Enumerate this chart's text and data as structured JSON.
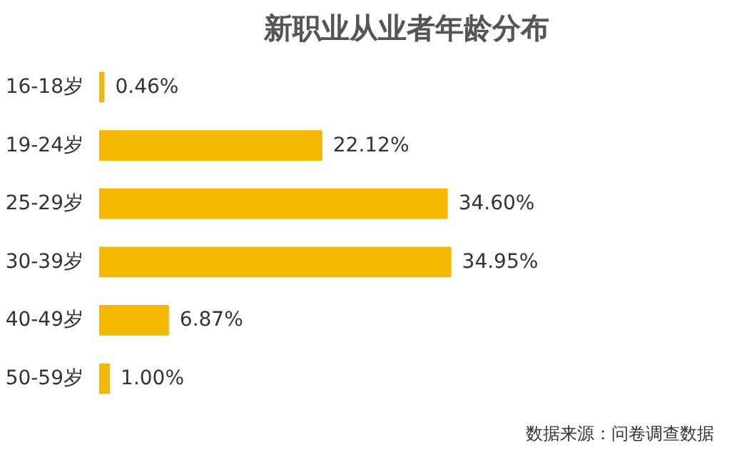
{
  "chart_data": {
    "type": "bar",
    "orientation": "horizontal",
    "title": "新职业从业者年龄分布",
    "categories": [
      "16-18岁",
      "19-24岁",
      "25-29岁",
      "30-39岁",
      "40-49岁",
      "50-59岁"
    ],
    "values": [
      0.46,
      22.12,
      34.6,
      34.95,
      6.87,
      1.0
    ],
    "value_labels": [
      "0.46%",
      "22.12%",
      "34.60%",
      "34.95%",
      "6.87%",
      "1.00%"
    ],
    "color": "#f5b800",
    "grid": false,
    "tick_labels": "y",
    "annotations": [
      "数据来源：问卷调查数据"
    ]
  }
}
